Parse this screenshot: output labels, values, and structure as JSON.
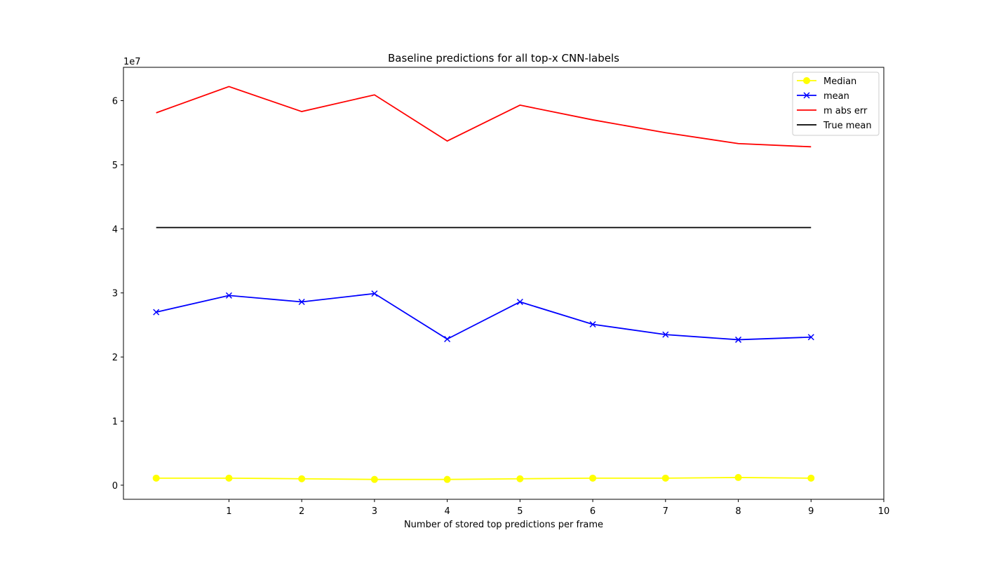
{
  "chart_data": {
    "type": "line",
    "title": "Baseline predictions for all top-x CNN-labels",
    "xlabel": "Number of stored top predictions per frame",
    "ylabel": "",
    "y_offset_label": "1e7",
    "x_ticks": [
      1,
      2,
      3,
      4,
      5,
      6,
      7,
      8,
      9,
      10
    ],
    "y_ticks": [
      0,
      1,
      2,
      3,
      4,
      5,
      6
    ],
    "xlim": [
      -0.45,
      10
    ],
    "ylim": [
      -0.22,
      6.52
    ],
    "grid": false,
    "legend_position": "top-right",
    "x": [
      0,
      1,
      2,
      3,
      4,
      5,
      6,
      7,
      8,
      9
    ],
    "series": [
      {
        "name": "Median",
        "color": "#ffff00",
        "marker": "circle",
        "values": [
          0.11,
          0.11,
          0.1,
          0.09,
          0.09,
          0.1,
          0.11,
          0.11,
          0.12,
          0.11
        ]
      },
      {
        "name": "mean",
        "color": "#0000ff",
        "marker": "x",
        "values": [
          2.7,
          2.96,
          2.86,
          2.99,
          2.28,
          2.86,
          2.51,
          2.35,
          2.27,
          2.31
        ]
      },
      {
        "name": "m abs err",
        "color": "#ff0000",
        "marker": "none",
        "values": [
          5.81,
          6.22,
          5.83,
          6.09,
          5.37,
          5.93,
          5.7,
          5.5,
          5.33,
          5.28
        ]
      },
      {
        "name": "True mean",
        "color": "#000000",
        "marker": "none",
        "values": [
          4.02,
          4.02,
          4.02,
          4.02,
          4.02,
          4.02,
          4.02,
          4.02,
          4.02,
          4.02
        ]
      }
    ]
  }
}
